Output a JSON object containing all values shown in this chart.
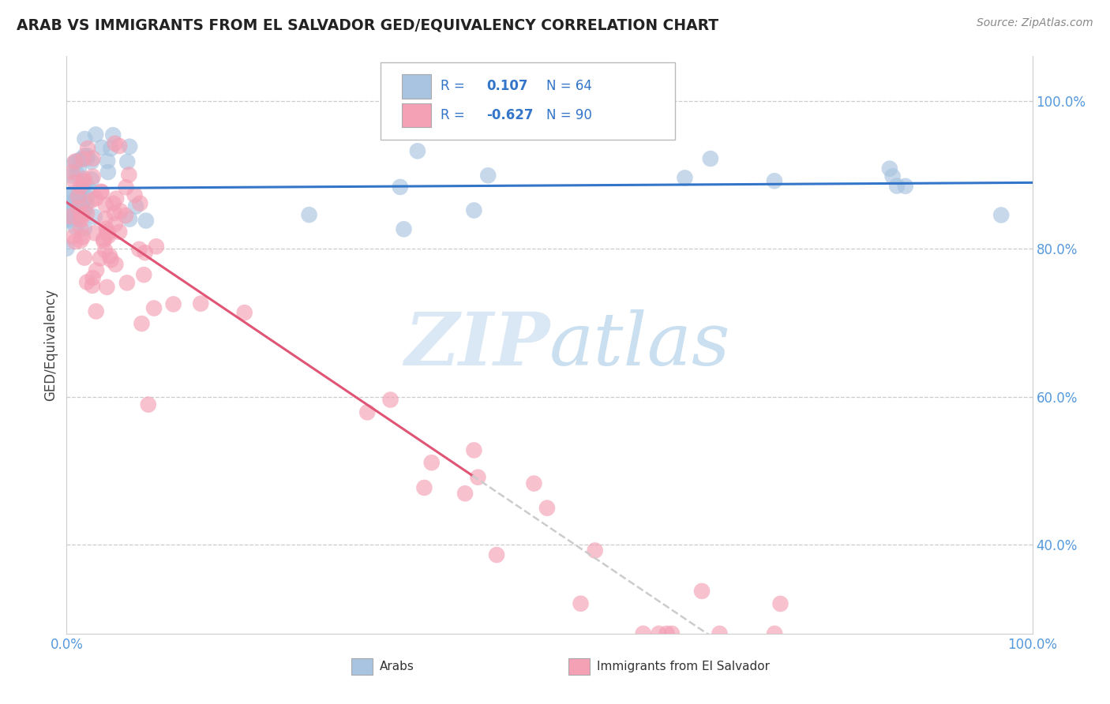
{
  "title": "ARAB VS IMMIGRANTS FROM EL SALVADOR GED/EQUIVALENCY CORRELATION CHART",
  "source": "Source: ZipAtlas.com",
  "ylabel": "GED/Equivalency",
  "r_arab": 0.107,
  "n_arab": 64,
  "r_salvador": -0.627,
  "n_salvador": 90,
  "arab_color": "#a8c4e0",
  "salvador_color": "#f4a0b5",
  "arab_line_color": "#3375c8",
  "salvador_line_color": "#e05575",
  "legend_text_color": "#3375c8",
  "watermark_color": "#c8daf0",
  "ytick_color": "#5599dd",
  "xtick_color": "#5599dd",
  "grid_color": "#cccccc",
  "background": "#ffffff",
  "arab_seed": 77,
  "salvador_seed": 42,
  "xlim": [
    0.0,
    1.0
  ],
  "ylim": [
    0.28,
    1.06
  ]
}
